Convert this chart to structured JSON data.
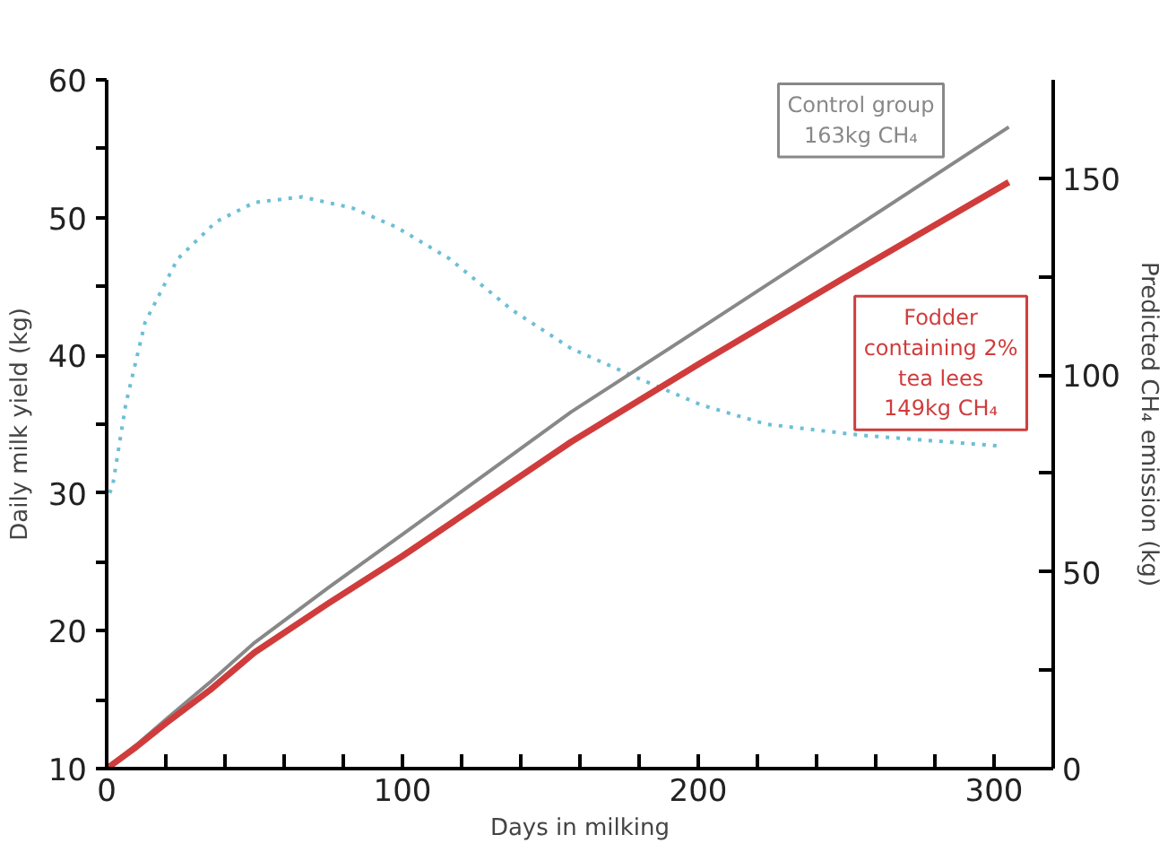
{
  "chart_data": {
    "type": "line",
    "xlabel": "Days in milking",
    "ylabel": "Daily milk yield (kg)",
    "y2label": "Predicted CH₄ emission (kg)",
    "xlim": [
      0,
      320
    ],
    "xticks": [
      0,
      {
        "value": 20,
        "label": null
      },
      {
        "value": 40,
        "label": null
      },
      {
        "value": 60,
        "label": null
      },
      {
        "value": 80,
        "label": null
      },
      100,
      {
        "value": 120,
        "label": null
      },
      {
        "value": 140,
        "label": null
      },
      {
        "value": 160,
        "label": null
      },
      {
        "value": 180,
        "label": null
      },
      200,
      {
        "value": 220,
        "label": null
      },
      {
        "value": 240,
        "label": null
      },
      {
        "value": 260,
        "label": null
      },
      {
        "value": 280,
        "label": null
      },
      300
    ],
    "ylim": [
      10,
      60
    ],
    "yticks": [
      10,
      {
        "value": 15,
        "label": null
      },
      20,
      {
        "value": 25,
        "label": null
      },
      30,
      {
        "value": 35,
        "label": null
      },
      40,
      {
        "value": 45,
        "label": null
      },
      50,
      {
        "value": 55,
        "label": null
      },
      60
    ],
    "y2lim": [
      0,
      175
    ],
    "y2ticks": [
      0,
      {
        "value": 25,
        "label": null
      },
      50,
      {
        "value": 75,
        "label": null
      },
      100,
      {
        "value": 125,
        "label": null
      },
      150
    ],
    "grid": false,
    "marker": "none",
    "annotations": [
      "163kg CH₄",
      "149kg CH₄"
    ],
    "series": [
      {
        "color": "#6cbfd6",
        "line_style": "dotted",
        "axis": "y",
        "x": [
          1,
          2,
          6.5,
          13,
          24,
          37,
          50,
          66,
          83,
          98,
          116,
          137,
          157,
          179,
          201,
          223,
          255,
          303
        ],
        "values": [
          30,
          30.5,
          36.5,
          42.4,
          47,
          49.7,
          51.1,
          51.5,
          50.7,
          49.3,
          47,
          43.3,
          40.5,
          38.4,
          36.4,
          35,
          34.2,
          33.4
        ]
      },
      {
        "name": "Control group",
        "color": "#888888",
        "line_style": "solid",
        "axis": "y2",
        "x": [
          0,
          10,
          20,
          35,
          50,
          75,
          100,
          157,
          200,
          250,
          305
        ],
        "values": [
          0,
          6,
          12.5,
          22,
          32,
          46,
          59.5,
          90.6,
          111.5,
          136,
          163
        ]
      },
      {
        "name": "Fodder containing 2% tea lees",
        "color": "#d03c3c",
        "line_style": "solid",
        "axis": "y2",
        "x": [
          0,
          10,
          20,
          35,
          50,
          75,
          100,
          157,
          200,
          250,
          305
        ],
        "values": [
          0,
          5.5,
          11.5,
          20,
          29.5,
          42,
          54,
          83,
          102.7,
          125,
          149
        ]
      }
    ]
  }
}
